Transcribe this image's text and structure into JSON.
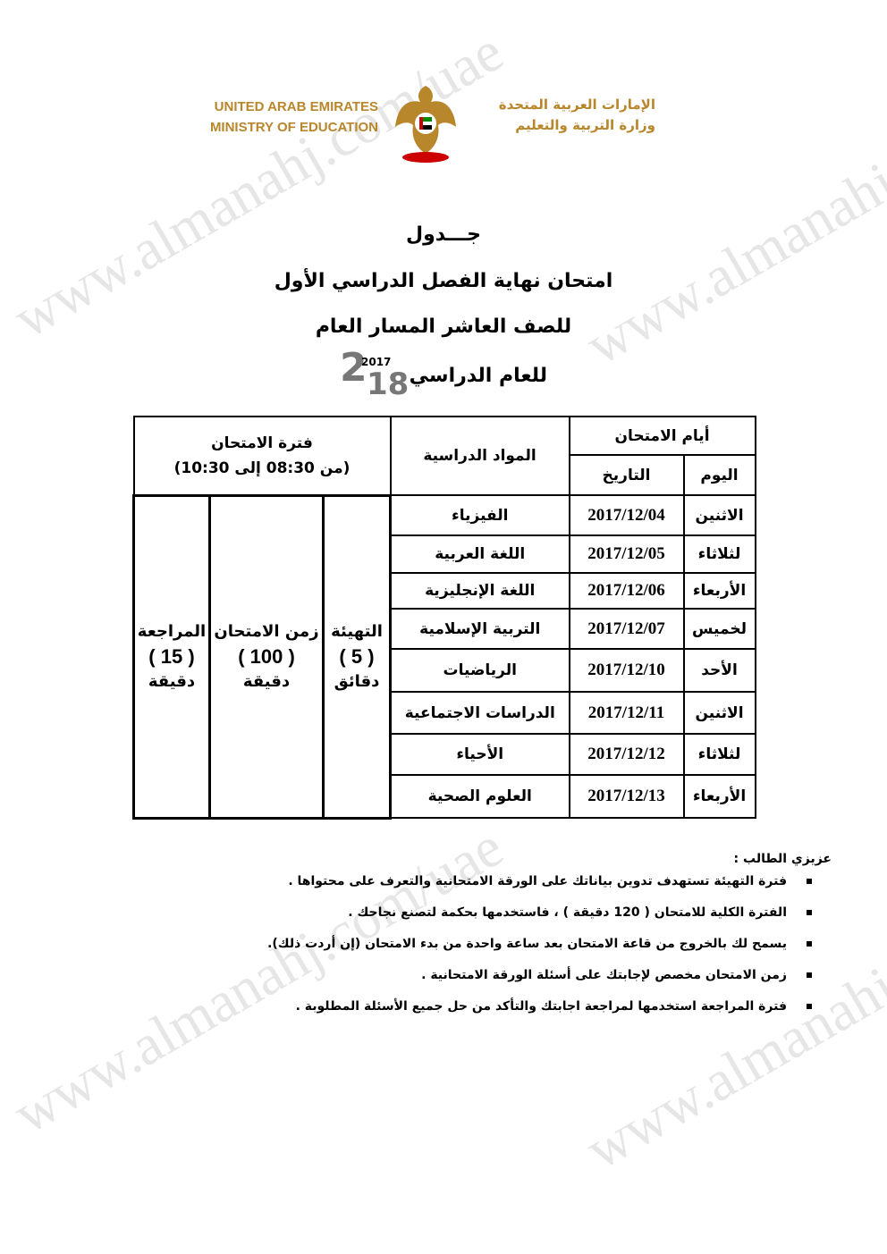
{
  "watermark": "www.almanahj.com/uae",
  "header": {
    "en_line1": "UNITED ARAB EMIRATES",
    "en_line2": "MINISTRY OF EDUCATION",
    "ar_line1": "الإمارات العربية المتحدة",
    "ar_line2": "وزارة التربية والتعليم",
    "brand_color": "#b8862b"
  },
  "titles": {
    "t1": "جـــدول",
    "t2": "امتحان نهاية الفصل الدراسي الأول",
    "t3": "للصف العاشر المسار العام",
    "t4": "للعام الدراسي",
    "year_top": "2017",
    "year_big": "2",
    "year_bottom": "18"
  },
  "table": {
    "h_days": "أيام الامتحان",
    "h_day": "اليوم",
    "h_date": "التاريخ",
    "h_subject": "المواد الدراسية",
    "h_period": "فترة الامتحان",
    "h_period_time": "(من 08:30  إلى  10:30)",
    "prep": {
      "label": "التهيئة",
      "value": "( 5 )",
      "unit": "دقائق"
    },
    "exam": {
      "label": "زمن الامتحان",
      "value": "( 100 )",
      "unit": "دقيقة"
    },
    "review": {
      "label": "المراجعة",
      "value": "( 15 )",
      "unit": "دقيقة"
    },
    "rows": [
      {
        "day": "الاثنين",
        "date": "2017/12/04",
        "subject": "الفيزياء"
      },
      {
        "day": "لثلاثاء",
        "date": "2017/12/05",
        "subject": "اللغة العربية"
      },
      {
        "day": "الأربعاء",
        "date": "2017/12/06",
        "subject": "اللغة الإنجليزية"
      },
      {
        "day": "لخميس",
        "date": "2017/12/07",
        "subject": "التربية الإسلامية"
      },
      {
        "day": "الأحد",
        "date": "2017/12/10",
        "subject": "الرياضيات"
      },
      {
        "day": "الاثنين",
        "date": "2017/12/11",
        "subject": "الدراسات الاجتماعية"
      },
      {
        "day": "لثلاثاء",
        "date": "2017/12/12",
        "subject": "الأحياء"
      },
      {
        "day": "الأربعاء",
        "date": "2017/12/13",
        "subject": "العلوم الصحية"
      }
    ]
  },
  "notes": {
    "heading": "عزيزي الطالب :",
    "items": [
      "فترة التهيئة تستهدف تدوين بياناتك على الورقة الامتحانية والتعرف على محتواها .",
      "الفترة الكلية للامتحان ( 120 دقيقة ) ، فاستخدمها بحكمة لتصنع نجاحك .",
      "يسمح لك بالخروج من قاعة الامتحان بعد ساعة واحدة من بدء الامتحان (إن أردت ذلك).",
      "زمن الامتحان مخصص لإجابتك على أسئلة الورقة الامتحانية .",
      "فترة المراجعة استخدمها لمراجعة اجابتك والتأكد من حل جميع الأسئلة المطلوبة ."
    ]
  }
}
